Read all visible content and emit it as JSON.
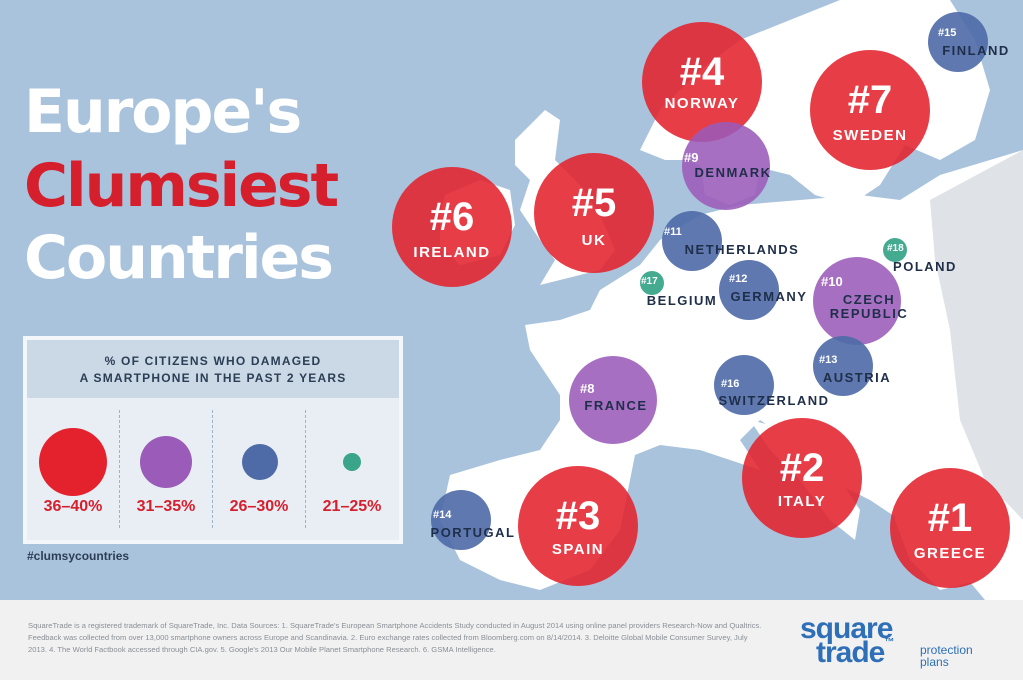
{
  "title": {
    "line1": "Europe's",
    "line2": "Clumsiest",
    "line3": "Countries"
  },
  "legend": {
    "heading_line1": "% OF CITIZENS WHO DAMAGED",
    "heading_line2": "A SMARTPHONE IN THE PAST 2 YEARS",
    "tiers": [
      {
        "label": "36–40%",
        "color": "#e4222d"
      },
      {
        "label": "31–35%",
        "color": "#9b5bb8"
      },
      {
        "label": "26–30%",
        "color": "#4e6aa7"
      },
      {
        "label": "21–25%",
        "color": "#3aa58a"
      }
    ]
  },
  "hashtag": "#clumsycountries",
  "countries": [
    {
      "rank": "#1",
      "name": "GREECE",
      "tier": 0
    },
    {
      "rank": "#2",
      "name": "ITALY",
      "tier": 0
    },
    {
      "rank": "#3",
      "name": "SPAIN",
      "tier": 0
    },
    {
      "rank": "#4",
      "name": "NORWAY",
      "tier": 0
    },
    {
      "rank": "#5",
      "name": "UK",
      "tier": 0
    },
    {
      "rank": "#6",
      "name": "IRELAND",
      "tier": 0
    },
    {
      "rank": "#7",
      "name": "SWEDEN",
      "tier": 0
    },
    {
      "rank": "#8",
      "name": "FRANCE",
      "tier": 1
    },
    {
      "rank": "#9",
      "name": "DENMARK",
      "tier": 1
    },
    {
      "rank": "#10",
      "name": "CZECH",
      "name2": "REPUBLIC",
      "tier": 1
    },
    {
      "rank": "#11",
      "name": "NETHERLANDS",
      "tier": 2
    },
    {
      "rank": "#12",
      "name": "GERMANY",
      "tier": 2
    },
    {
      "rank": "#13",
      "name": "AUSTRIA",
      "tier": 2
    },
    {
      "rank": "#14",
      "name": "PORTUGAL",
      "tier": 2
    },
    {
      "rank": "#15",
      "name": "FINLAND",
      "tier": 2
    },
    {
      "rank": "#16",
      "name": "SWITZERLAND",
      "tier": 2
    },
    {
      "rank": "#17",
      "name": "BELGIUM",
      "tier": 3
    },
    {
      "rank": "#18",
      "name": "POLAND",
      "tier": 3
    }
  ],
  "footer_text": "SquareTrade is a registered trademark of SquareTrade, Inc. Data Sources: 1. SquareTrade's European Smartphone Accidents Study conducted in August 2014 using online panel providers Research-Now and Qualtrics. Feedback was collected from over 13,000 smartphone owners across Europe and Scandinavia. 2. Euro exchange rates collected from Bloomberg.com on 8/14/2014. 3. Deloitte Global Mobile Consumer Survey, July 2013. 4. The World Factbook accessed through CIA.gov. 5. Google's 2013 Our Mobile Planet Smartphone Research. 6. GSMA Intelligence.",
  "logo": {
    "square": "square",
    "trade": "trade",
    "tm": "™",
    "tagline1": "protection",
    "tagline2": "plans"
  },
  "colors": {
    "sea": "#a9c3dc",
    "land": "#ffffff",
    "land_outside": "#dfe3e8",
    "accent": "#d61f2c",
    "navy": "#1f2f4a"
  }
}
